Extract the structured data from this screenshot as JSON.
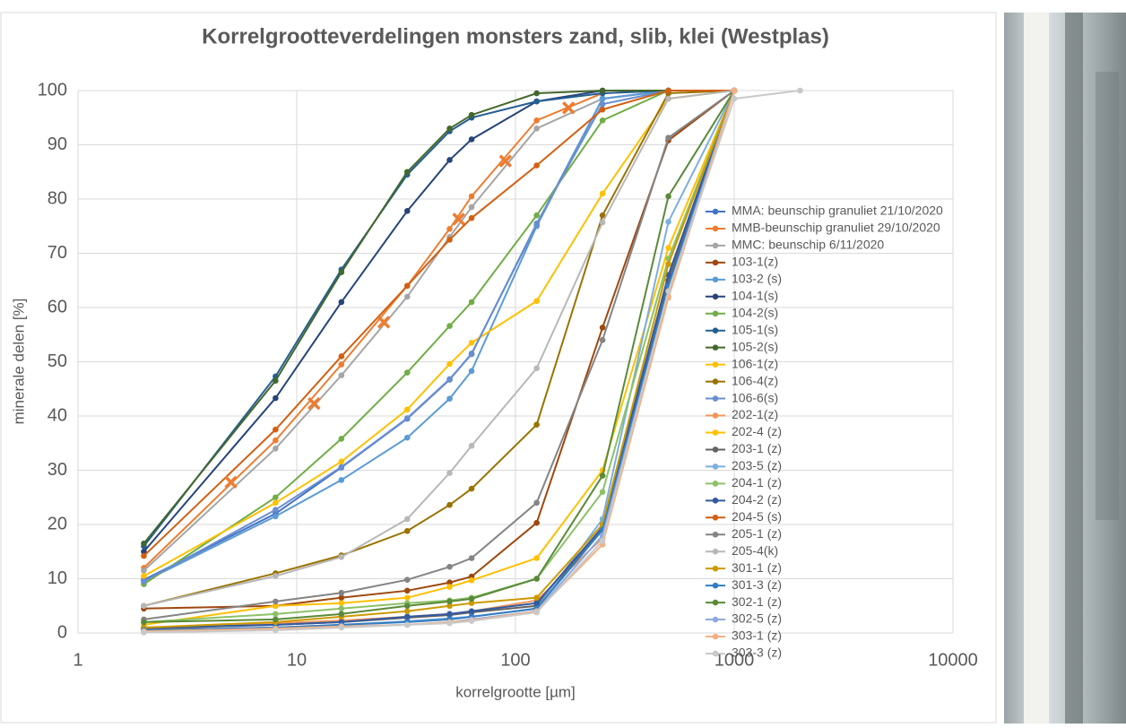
{
  "chart_data": {
    "type": "line",
    "title": "Korrelgrootteverdelingen monsters zand, slib, klei (Westplas)",
    "x_label": "korrelgrootte [µm]",
    "y_label": "minerale delen [%]",
    "x_scale": "log",
    "xlim": [
      1,
      10000
    ],
    "xticks": [
      1,
      10,
      100,
      1000,
      10000
    ],
    "ylim": [
      0,
      100
    ],
    "yticks": [
      0,
      10,
      20,
      30,
      40,
      50,
      60,
      70,
      80,
      90,
      100
    ],
    "grid": true,
    "x": [
      2,
      8,
      16,
      32,
      50,
      63,
      125,
      250,
      500,
      1000,
      2000
    ],
    "series": [
      {
        "name": "MMA: beunschip granuliet 21/10/2020",
        "color": "#4472c4",
        "values": [
          9.8,
          22,
          30.5,
          39.5,
          46.7,
          51.5,
          75.3,
          98.5,
          100,
          100,
          null
        ]
      },
      {
        "name": "MMB-beunschip granuliet 29/10/2020",
        "color": "#ed7d31",
        "values": [
          12,
          35.5,
          49.5,
          64,
          74.5,
          80.5,
          94.5,
          99.5,
          100,
          100,
          null
        ]
      },
      {
        "name": "MMC: beunschip 6/11/2020",
        "color": "#a5a5a5",
        "values": [
          11.5,
          34,
          47.5,
          62,
          73,
          78.5,
          93,
          98.5,
          100,
          100,
          null
        ]
      },
      {
        "name": "103-1(z)",
        "color": "#9e480e",
        "values": [
          4.5,
          5,
          6.5,
          7.8,
          9.3,
          10.4,
          20.3,
          56.3,
          90.8,
          100,
          null
        ]
      },
      {
        "name": "103-2 (s)",
        "color": "#5b9bd5",
        "values": [
          9.5,
          21.5,
          28.2,
          36,
          43.2,
          48.3,
          75,
          98.5,
          100,
          100,
          null
        ]
      },
      {
        "name": "104-1(s)",
        "color": "#264478",
        "values": [
          15,
          43.3,
          61,
          77.8,
          87.2,
          91,
          98,
          100,
          100,
          100,
          null
        ]
      },
      {
        "name": "104-2(s)",
        "color": "#70ad47",
        "values": [
          9,
          25,
          35.8,
          48,
          56.6,
          61,
          77,
          94.5,
          100,
          100,
          null
        ]
      },
      {
        "name": "105-1(s)",
        "color": "#255e91",
        "values": [
          16,
          47.3,
          67,
          84.5,
          92.5,
          95,
          98,
          99.5,
          100,
          100,
          null
        ]
      },
      {
        "name": "105-2(s)",
        "color": "#43682b",
        "values": [
          16.5,
          46.5,
          66.5,
          85,
          93,
          95.5,
          99.5,
          100,
          100,
          100,
          null
        ]
      },
      {
        "name": "106-1(z)",
        "color": "#ffc000",
        "values": [
          10.5,
          24,
          31.6,
          41.2,
          49.6,
          53.5,
          61.2,
          81,
          98.5,
          100,
          null
        ]
      },
      {
        "name": "106-4(z)",
        "color": "#997300",
        "values": [
          5,
          11,
          14.3,
          18.8,
          23.6,
          26.6,
          38.4,
          77,
          99.5,
          100,
          null
        ]
      },
      {
        "name": "106-6(s)",
        "color": "#698ed0",
        "values": [
          9.5,
          22.7,
          30.6,
          39.6,
          46.8,
          51.4,
          75.5,
          97.5,
          100,
          100,
          null
        ]
      },
      {
        "name": "202-1(z)",
        "color": "#f1975a",
        "values": [
          0.5,
          1.8,
          2.3,
          3,
          3.5,
          4,
          6,
          17.5,
          62,
          100,
          null
        ]
      },
      {
        "name": "202-4 (z)",
        "color": "#ffc000",
        "values": [
          1.5,
          5,
          5.5,
          6.5,
          8.5,
          9.7,
          13.8,
          30,
          71,
          100,
          null
        ]
      },
      {
        "name": "203-1 (z)",
        "color": "#636363",
        "values": [
          0.8,
          1.5,
          2,
          2.8,
          3.3,
          3.8,
          5,
          19,
          65,
          100,
          null
        ]
      },
      {
        "name": "203-5 (z)",
        "color": "#7cafdd",
        "values": [
          0.5,
          1,
          1.5,
          2.2,
          2.7,
          3,
          4.5,
          21,
          75.8,
          100,
          null
        ]
      },
      {
        "name": "204-1 (z)",
        "color": "#8cc168",
        "values": [
          2,
          3.5,
          4.5,
          5.5,
          6,
          6.5,
          10,
          26,
          69,
          100,
          null
        ]
      },
      {
        "name": "204-2 (z)",
        "color": "#335aa1",
        "values": [
          1,
          1.5,
          2,
          3,
          3.5,
          4,
          5.5,
          19.5,
          66,
          100,
          null
        ]
      },
      {
        "name": "204-5 (s)",
        "color": "#d26012",
        "values": [
          14.2,
          37.5,
          51,
          64,
          72.5,
          76.5,
          86.2,
          96.5,
          100,
          100,
          null
        ]
      },
      {
        "name": "205-1 (z)",
        "color": "#848484",
        "values": [
          2.5,
          5.8,
          7.4,
          9.8,
          12.2,
          13.8,
          24,
          54,
          91.3,
          100,
          null
        ]
      },
      {
        "name": "205-4(k)",
        "color": "#b7b7b7",
        "values": [
          5,
          10.5,
          14,
          21,
          29.5,
          34.5,
          48.8,
          75.7,
          98.5,
          100,
          null
        ]
      },
      {
        "name": "301-1 (z)",
        "color": "#cc9a00",
        "values": [
          1,
          2,
          3,
          4,
          5,
          5.5,
          6.5,
          20,
          68,
          100,
          null
        ]
      },
      {
        "name": "301-3 (z)",
        "color": "#327dc2",
        "values": [
          0.5,
          1,
          1.5,
          2,
          2.5,
          3,
          4.5,
          19,
          64,
          100,
          null
        ]
      },
      {
        "name": "302-1 (z)",
        "color": "#5a8a39",
        "values": [
          2,
          2.5,
          3.5,
          5,
          5.8,
          6.3,
          10,
          29,
          80.5,
          100,
          null
        ]
      },
      {
        "name": "302-5 (z)",
        "color": "#8faadc",
        "values": [
          0.3,
          0.8,
          1.2,
          1.5,
          2,
          2.5,
          4,
          18,
          63,
          100,
          null
        ]
      },
      {
        "name": "303-1 (z)",
        "color": "#f4b183",
        "values": [
          0.3,
          0.8,
          1.2,
          1.5,
          2,
          2.3,
          4,
          16.3,
          61.8,
          100,
          null
        ]
      },
      {
        "name": "303-3 (z)",
        "color": "#c9c9c9",
        "values": [
          0.1,
          0.5,
          1,
          1.5,
          1.8,
          2.2,
          3.8,
          17,
          63,
          98.5,
          100
        ]
      },
      {
        "color": "#ed7d31",
        "marker": "x",
        "line": false,
        "x": [
          5,
          12,
          25,
          55,
          90,
          175
        ],
        "values": [
          27.8,
          42.3,
          57.3,
          76.3,
          87,
          96.8
        ]
      }
    ]
  }
}
